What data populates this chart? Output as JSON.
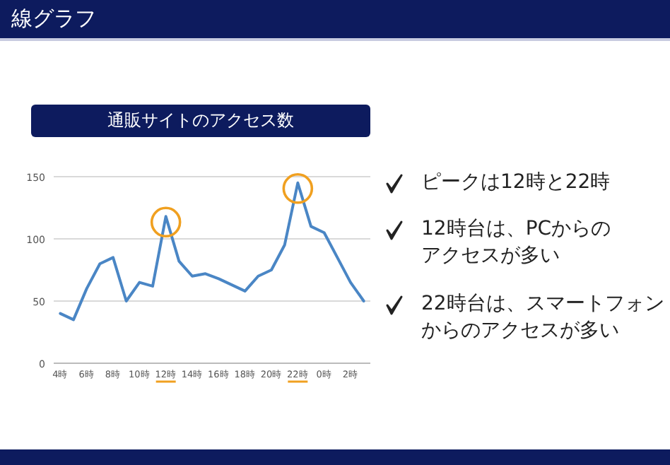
{
  "chart_data": {
    "type": "line",
    "title": "通販サイトのアクセス数",
    "annotations": [
      "線グラフ",
      "ピークは12時と22時",
      "12時台は、PCからのアクセスが多い",
      "22時台は、スマートフォンからのアクセスが多い"
    ],
    "categories": [
      "4時",
      null,
      "6時",
      null,
      "8時",
      null,
      "10時",
      null,
      "12時",
      null,
      "14時",
      null,
      "16時",
      null,
      "18時",
      null,
      "20時",
      null,
      "22時",
      null,
      "0時",
      null,
      "2時",
      null
    ],
    "series": [
      {
        "color": "#4a86c5",
        "values": [
          40,
          35,
          60,
          80,
          85,
          50,
          65,
          62,
          118,
          82,
          70,
          72,
          68,
          63,
          58,
          70,
          75,
          95,
          145,
          110,
          105,
          85,
          65,
          50
        ]
      }
    ],
    "ylim": [
      0,
      150
    ],
    "yticks": [
      0,
      50,
      100,
      150
    ],
    "grid": "y"
  }
}
